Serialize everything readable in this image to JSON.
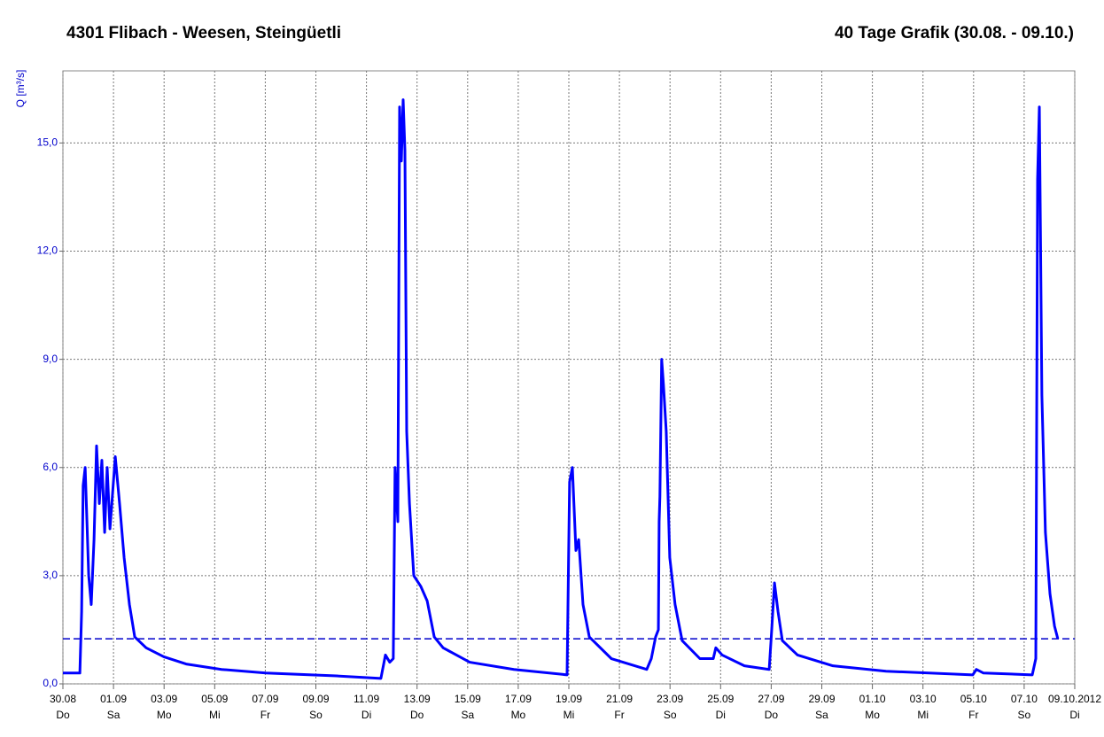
{
  "chart_data": {
    "type": "line",
    "title": "4301 Flibach - Weesen, Steingüetli",
    "subtitle": "40 Tage Grafik (30.08. - 09.10.)",
    "y_label": "Q [m³/s]",
    "xlim": [
      0,
      40
    ],
    "ylim": [
      0,
      17
    ],
    "xticks": [
      {
        "value": 0,
        "label": "30.08"
      },
      {
        "value": 2,
        "label": "01.09"
      },
      {
        "value": 4,
        "label": "03.09"
      },
      {
        "value": 6,
        "label": "05.09"
      },
      {
        "value": 8,
        "label": "07.09"
      },
      {
        "value": 10,
        "label": "09.09"
      },
      {
        "value": 12,
        "label": "11.09"
      },
      {
        "value": 14,
        "label": "13.09"
      },
      {
        "value": 16,
        "label": "15.09"
      },
      {
        "value": 18,
        "label": "17.09"
      },
      {
        "value": 20,
        "label": "19.09"
      },
      {
        "value": 22,
        "label": "21.09"
      },
      {
        "value": 24,
        "label": "23.09"
      },
      {
        "value": 26,
        "label": "25.09"
      },
      {
        "value": 28,
        "label": "27.09"
      },
      {
        "value": 30,
        "label": "29.09"
      },
      {
        "value": 32,
        "label": "01.10"
      },
      {
        "value": 34,
        "label": "03.10"
      },
      {
        "value": 36,
        "label": "05.10"
      },
      {
        "value": 38,
        "label": "07.10"
      },
      {
        "value": 40,
        "label": "09.10.2012"
      }
    ],
    "xtick_days": [
      "Do",
      "Sa",
      "Mo",
      "Mi",
      "Fr",
      "So",
      "Di",
      "Do",
      "Sa",
      "Mo",
      "Mi",
      "Fr",
      "So",
      "Di",
      "Do",
      "Sa",
      "Mo",
      "Mi",
      "Fr",
      "So",
      "Di"
    ],
    "yticks": [
      {
        "value": 0,
        "label": "0,0"
      },
      {
        "value": 3,
        "label": "3,0"
      },
      {
        "value": 6,
        "label": "6,0"
      },
      {
        "value": 9,
        "label": "9,0"
      },
      {
        "value": 12,
        "label": "12,0"
      },
      {
        "value": 15,
        "label": "15,0"
      }
    ],
    "grid": true,
    "reference_line": {
      "value": 1.25,
      "color": "#0000cc"
    },
    "series": [
      {
        "color": "#0000ff",
        "x": [
          0,
          0.67,
          0.74,
          0.8,
          0.88,
          0.95,
          1.02,
          1.12,
          1.23,
          1.33,
          1.44,
          1.54,
          1.65,
          1.75,
          1.86,
          2.07,
          2.24,
          2.42,
          2.63,
          2.84,
          3.29,
          3.99,
          4.87,
          6.27,
          8.02,
          10.82,
          12.57,
          12.75,
          12.92,
          13.06,
          13.13,
          13.24,
          13.31,
          13.38,
          13.45,
          13.52,
          13.59,
          13.7,
          13.87,
          14.15,
          14.4,
          14.68,
          15.03,
          16.08,
          17.83,
          19.93,
          20.03,
          20.14,
          20.28,
          20.39,
          20.56,
          20.81,
          21.68,
          23.08,
          23.26,
          23.43,
          23.54,
          23.57,
          23.6,
          23.67,
          23.74,
          23.85,
          23.99,
          24.2,
          24.48,
          25.18,
          25.71,
          25.81,
          26.06,
          26.94,
          27.92,
          28.02,
          28.13,
          28.27,
          28.44,
          29.04,
          30.44,
          32.54,
          35.97,
          36.11,
          36.39,
          38.32,
          38.46,
          38.53,
          38.6,
          38.7,
          38.84,
          39.02,
          39.2,
          39.33
        ],
        "values": [
          0.3,
          0.3,
          2.0,
          5.5,
          6.0,
          4.5,
          3.0,
          2.2,
          4.0,
          6.6,
          5.0,
          6.2,
          4.2,
          6.0,
          4.3,
          6.3,
          5.0,
          3.5,
          2.2,
          1.3,
          1.0,
          0.75,
          0.55,
          0.4,
          0.3,
          0.22,
          0.15,
          0.8,
          0.6,
          0.7,
          6.0,
          4.5,
          16.0,
          14.5,
          16.2,
          14.8,
          7.0,
          5.0,
          3.0,
          2.7,
          2.3,
          1.3,
          1.0,
          0.6,
          0.4,
          0.25,
          5.6,
          6.0,
          3.7,
          4.0,
          2.2,
          1.3,
          0.7,
          0.4,
          0.7,
          1.3,
          1.5,
          4.5,
          5.2,
          9.0,
          8.3,
          7.0,
          3.5,
          2.2,
          1.2,
          0.7,
          0.7,
          1.0,
          0.8,
          0.5,
          0.4,
          1.5,
          2.8,
          2.0,
          1.2,
          0.8,
          0.5,
          0.35,
          0.25,
          0.4,
          0.3,
          0.25,
          0.7,
          14.0,
          16.0,
          8.0,
          4.2,
          2.5,
          1.6,
          1.25
        ]
      }
    ]
  }
}
